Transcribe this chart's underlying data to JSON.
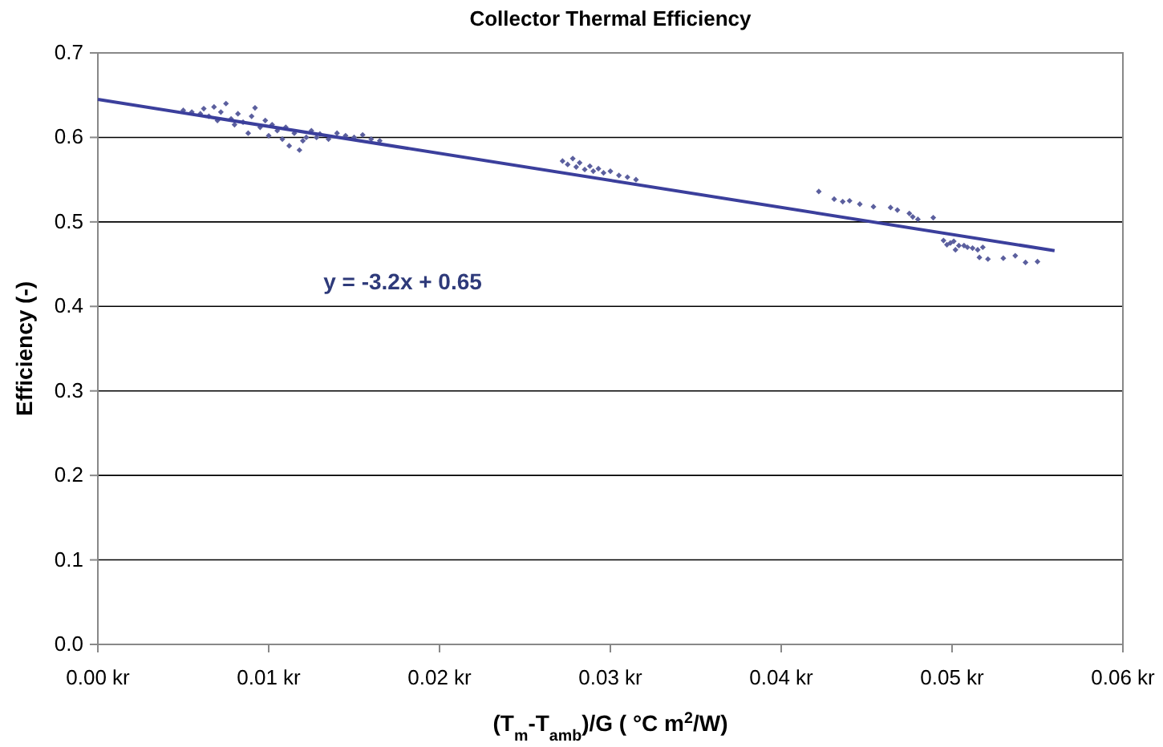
{
  "chart_data": {
    "type": "scatter",
    "title": "Collector Thermal Efficiency",
    "xlabel": "(T$_{m}$-T$_{amb}$)/G ( °C m$^{2}$/W)",
    "ylabel": "Efficiency (-)",
    "xlim": [
      0,
      0.06
    ],
    "ylim": [
      0,
      0.7
    ],
    "xticks": [
      {
        "value": 0,
        "label": "0.00 kr"
      },
      {
        "value": 0.01,
        "label": "0.01 kr"
      },
      {
        "value": 0.02,
        "label": "0.02 kr"
      },
      {
        "value": 0.03,
        "label": "0.03 kr"
      },
      {
        "value": 0.04,
        "label": "0.04 kr"
      },
      {
        "value": 0.05,
        "label": "0.05 kr"
      },
      {
        "value": 0.06,
        "label": "0.06 kr"
      }
    ],
    "yticks": [
      {
        "value": 0,
        "label": "0.0"
      },
      {
        "value": 0.1,
        "label": "0.1"
      },
      {
        "value": 0.2,
        "label": "0.2"
      },
      {
        "value": 0.3,
        "label": "0.3"
      },
      {
        "value": 0.4,
        "label": "0.4"
      },
      {
        "value": 0.5,
        "label": "0.5"
      },
      {
        "value": 0.6,
        "label": "0.6"
      },
      {
        "value": 0.7,
        "label": "0.7"
      }
    ],
    "grid": "y",
    "marker": "diamond",
    "annotations": [
      "y = -3.2x + 0.65"
    ],
    "series": [
      {
        "color": "#5b5f9e",
        "x": [
          0.005,
          0.0055,
          0.006,
          0.0062,
          0.0065,
          0.0068,
          0.007,
          0.0072,
          0.0075,
          0.0078,
          0.008,
          0.0082,
          0.0085,
          0.0088,
          0.009,
          0.0092,
          0.0095,
          0.0098,
          0.01,
          0.0102,
          0.0105,
          0.0108,
          0.011,
          0.0112,
          0.0115,
          0.0118,
          0.012,
          0.0122,
          0.0125,
          0.0128,
          0.013,
          0.0135,
          0.014,
          0.0145,
          0.015,
          0.0155,
          0.016,
          0.0165,
          0.0272,
          0.0275,
          0.0278,
          0.028,
          0.0282,
          0.0285,
          0.0288,
          0.029,
          0.0293,
          0.0296,
          0.03,
          0.0305,
          0.031,
          0.0315,
          0.0422,
          0.0431,
          0.0436,
          0.044,
          0.0446,
          0.0454,
          0.0464,
          0.0468,
          0.0475,
          0.0477,
          0.048,
          0.0489,
          0.0495,
          0.0497,
          0.0499,
          0.0501,
          0.0502,
          0.0504,
          0.0507,
          0.0509,
          0.0512,
          0.0515,
          0.0516,
          0.0518,
          0.0521,
          0.053,
          0.0537,
          0.0543,
          0.055
        ],
        "values": [
          0.632,
          0.63,
          0.628,
          0.634,
          0.625,
          0.636,
          0.62,
          0.63,
          0.64,
          0.622,
          0.615,
          0.628,
          0.618,
          0.605,
          0.625,
          0.635,
          0.612,
          0.62,
          0.602,
          0.615,
          0.608,
          0.598,
          0.612,
          0.59,
          0.605,
          0.585,
          0.596,
          0.6,
          0.608,
          0.6,
          0.604,
          0.598,
          0.605,
          0.602,
          0.6,
          0.603,
          0.598,
          0.596,
          0.572,
          0.568,
          0.575,
          0.565,
          0.57,
          0.562,
          0.566,
          0.56,
          0.563,
          0.558,
          0.56,
          0.555,
          0.553,
          0.55,
          0.536,
          0.527,
          0.524,
          0.525,
          0.521,
          0.518,
          0.517,
          0.514,
          0.51,
          0.506,
          0.503,
          0.505,
          0.478,
          0.473,
          0.475,
          0.477,
          0.467,
          0.472,
          0.472,
          0.47,
          0.469,
          0.467,
          0.458,
          0.47,
          0.456,
          0.457,
          0.46,
          0.452,
          0.453
        ]
      },
      {
        "type": "line",
        "color": "#3b3f9c",
        "marker": "none",
        "line_style": "solid",
        "x": [
          0,
          0.056
        ],
        "values": [
          0.645,
          0.466
        ]
      }
    ]
  }
}
